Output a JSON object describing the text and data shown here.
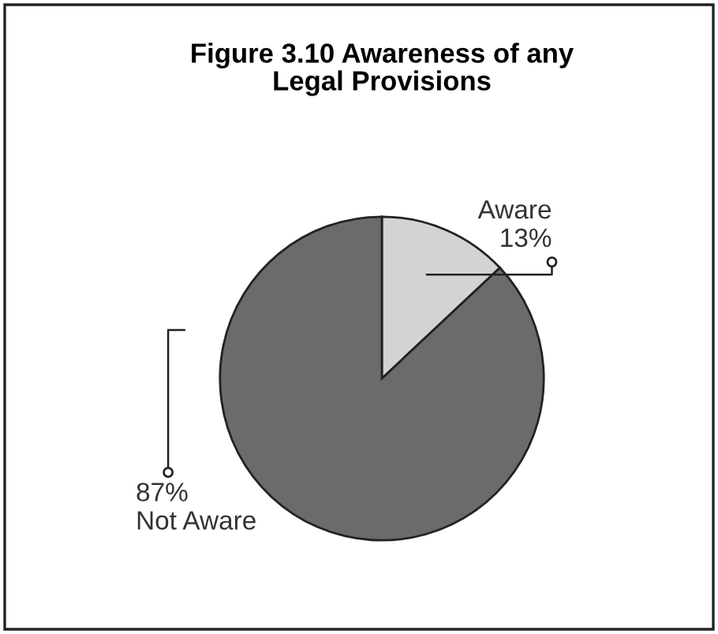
{
  "chart_data": {
    "type": "pie",
    "title": "Figure 3.10 Awareness of any\nLegal Provisions",
    "categories": [
      "Aware",
      "Not Aware"
    ],
    "values": [
      13,
      87
    ],
    "value_labels": [
      "13%",
      "87%"
    ],
    "colors": [
      "#d3d3d3",
      "#6b6b6b"
    ]
  }
}
